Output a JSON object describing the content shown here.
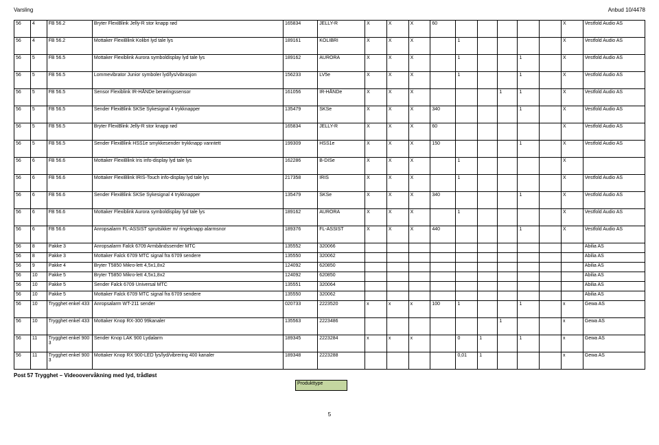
{
  "header": {
    "left": "Varsling",
    "right": "Anbud 10/4478"
  },
  "vendor_vestfold": "Vestfold Audio AS",
  "vendor_abilia": "Abilia AS",
  "vendor_gewa": "Gewa AS",
  "rows": [
    {
      "h": "tall",
      "c1": "56",
      "c2": "4",
      "c3": "FB 56.2",
      "c4": "Bryter FlexiBlink Jelly-R stor knapp rød",
      "c5": "165834",
      "c6": "JELLY-R",
      "c7": "X",
      "c8": "X",
      "c9": "X",
      "c10": "60",
      "c11": "",
      "c12": "",
      "c13": "",
      "c14": "",
      "c15": "",
      "c16": "X",
      "c17": "Vestfold Audio AS"
    },
    {
      "h": "tall",
      "c1": "56",
      "c2": "4",
      "c3": "FB 56.2",
      "c4": "Mottaker FlexiBlink Kolibri lyd tale lys",
      "c5": "189161",
      "c6": "KOLIBRI",
      "c7": "X",
      "c8": "X",
      "c9": "X",
      "c10": "",
      "c11": "1",
      "c12": "",
      "c13": "",
      "c14": "",
      "c15": "",
      "c16": "X",
      "c17": "Vestfold Audio AS"
    },
    {
      "h": "tall",
      "c1": "56",
      "c2": "5",
      "c3": "FB 56.5",
      "c4": "Mottaker Flexiblink Aurora symboldisplay lyd tale lys",
      "c5": "189162",
      "c6": "AURORA",
      "c7": "X",
      "c8": "X",
      "c9": "X",
      "c10": "",
      "c11": "1",
      "c12": "",
      "c13": "",
      "c14": "1",
      "c15": "",
      "c16": "X",
      "c17": "Vestfold Audio AS"
    },
    {
      "h": "tall",
      "c1": "56",
      "c2": "5",
      "c3": "FB 56.5",
      "c4": "Lommevibrator Junior symboler lyd/lys/vibrasjon",
      "c5": "156233",
      "c6": "LV5e",
      "c7": "X",
      "c8": "X",
      "c9": "X",
      "c10": "",
      "c11": "1",
      "c12": "",
      "c13": "",
      "c14": "1",
      "c15": "",
      "c16": "X",
      "c17": "Vestfold Audio AS"
    },
    {
      "h": "tall",
      "c1": "56",
      "c2": "5",
      "c3": "FB 56.5",
      "c4": "Sensor Flexiblink IR-HÅNDe berøringssensor",
      "c5": "161056",
      "c6": "IR-HÅNDe",
      "c7": "X",
      "c8": "X",
      "c9": "X",
      "c10": "",
      "c11": "",
      "c12": "",
      "c13": "1",
      "c14": "1",
      "c15": "",
      "c16": "X",
      "c17": "Vestfold Audio AS"
    },
    {
      "h": "tall",
      "c1": "56",
      "c2": "5",
      "c3": "FB 56.5",
      "c4": "Sender FlexiBlink SKSe Sykesignal 4 trykknapper",
      "c5": "135479",
      "c6": "SKSe",
      "c7": "X",
      "c8": "X",
      "c9": "X",
      "c10": "340",
      "c11": "",
      "c12": "",
      "c13": "",
      "c14": "1",
      "c15": "",
      "c16": "X",
      "c17": "Vestfold Audio AS"
    },
    {
      "h": "tall",
      "c1": "56",
      "c2": "5",
      "c3": "FB 56.5",
      "c4": "Bryter FlexiBlink Jelly-R stor knapp rød",
      "c5": "165834",
      "c6": "JELLY-R",
      "c7": "X",
      "c8": "X",
      "c9": "X",
      "c10": "60",
      "c11": "",
      "c12": "",
      "c13": "",
      "c14": "",
      "c15": "",
      "c16": "X",
      "c17": "Vestfold Audio AS"
    },
    {
      "h": "tall",
      "c1": "56",
      "c2": "5",
      "c3": "FB 56.5",
      "c4": "Sender FlexiBlink HSS1e smykkesender trykknapp vanntett",
      "c5": "199309",
      "c6": "HSS1e",
      "c7": "X",
      "c8": "X",
      "c9": "X",
      "c10": "150",
      "c11": "",
      "c12": "",
      "c13": "",
      "c14": "1",
      "c15": "",
      "c16": "X",
      "c17": "Vestfold Audio AS"
    },
    {
      "h": "tall",
      "c1": "56",
      "c2": "6",
      "c3": "FB 56.6",
      "c4": "Mottaker FlexiBlink Iris info-display lyd tale lys",
      "c5": "162286",
      "c6": "B-DISe",
      "c7": "X",
      "c8": "X",
      "c9": "X",
      "c10": "",
      "c11": "1",
      "c12": "",
      "c13": "",
      "c14": "",
      "c15": "",
      "c16": "X",
      "c17": ""
    },
    {
      "h": "tall",
      "c1": "56",
      "c2": "6",
      "c3": "FB 56.6",
      "c4": "Mottaker FlexiBlink IRIS-Touch info-display lyd tale lys",
      "c5": "217358",
      "c6": "IRIS",
      "c7": "X",
      "c8": "X",
      "c9": "X",
      "c10": "",
      "c11": "1",
      "c12": "",
      "c13": "",
      "c14": "",
      "c15": "",
      "c16": "X",
      "c17": "Vestfold Audio AS"
    },
    {
      "h": "tall",
      "c1": "56",
      "c2": "6",
      "c3": "FB 56.6",
      "c4": "Sender FlexiBlink SKSe Sykesignal 4 trykknapper",
      "c5": "135479",
      "c6": "SKSe",
      "c7": "X",
      "c8": "X",
      "c9": "X",
      "c10": "340",
      "c11": "",
      "c12": "",
      "c13": "",
      "c14": "1",
      "c15": "",
      "c16": "X",
      "c17": "Vestfold Audio AS"
    },
    {
      "h": "tall",
      "c1": "56",
      "c2": "6",
      "c3": "FB 56.6",
      "c4": "Mottaker Flexiblink Aurora symboldisplay lyd tale lys",
      "c5": "189162",
      "c6": "AURORA",
      "c7": "X",
      "c8": "X",
      "c9": "X",
      "c10": "",
      "c11": "1",
      "c12": "",
      "c13": "",
      "c14": "",
      "c15": "",
      "c16": "X",
      "c17": "Vestfold Audio AS"
    },
    {
      "h": "tall",
      "c1": "56",
      "c2": "6",
      "c3": "FB 56.6",
      "c4": "Anropsalarm FL-ASSIST sprutsikker m/ ringeknapp alarmsnor",
      "c5": "189376",
      "c6": "FL-ASSIST",
      "c7": "X",
      "c8": "X",
      "c9": "X",
      "c10": "440",
      "c11": "",
      "c12": "",
      "c13": "",
      "c14": "1",
      "c15": "",
      "c16": "X",
      "c17": "Vestfold Audio AS"
    },
    {
      "h": "short",
      "c1": "56",
      "c2": "8",
      "c3": "Pakke 3",
      "c4": "Anropsalarm Falck 6709 Armbåndssender MTC",
      "c5": "135552",
      "c6": "320066",
      "c7": "",
      "c8": "",
      "c9": "",
      "c10": "",
      "c11": "",
      "c12": "",
      "c13": "",
      "c14": "",
      "c15": "",
      "c16": "",
      "c17": "Abilia AS"
    },
    {
      "h": "short",
      "c1": "56",
      "c2": "8",
      "c3": "Pakke 3",
      "c4": "Mottaker Falck 6709 MTC signal fra 6709 sendere",
      "c5": "135550",
      "c6": "320062",
      "c7": "",
      "c8": "",
      "c9": "",
      "c10": "",
      "c11": "",
      "c12": "",
      "c13": "",
      "c14": "",
      "c15": "",
      "c16": "",
      "c17": "Abilia AS"
    },
    {
      "h": "short",
      "c1": "56",
      "c2": "9",
      "c3": "Pakke 4",
      "c4": "Bryter T5850 Mikro-lett 4,5x1,8x2",
      "c5": "124092",
      "c6": "620850",
      "c7": "",
      "c8": "",
      "c9": "",
      "c10": "",
      "c11": "",
      "c12": "",
      "c13": "",
      "c14": "",
      "c15": "",
      "c16": "",
      "c17": "Abilia AS"
    },
    {
      "h": "short",
      "c1": "56",
      "c2": "10",
      "c3": "Pakke 5",
      "c4": "Bryter T5850 Mikro-lett 4,5x1,8x2",
      "c5": "124092",
      "c6": "620850",
      "c7": "",
      "c8": "",
      "c9": "",
      "c10": "",
      "c11": "",
      "c12": "",
      "c13": "",
      "c14": "",
      "c15": "",
      "c16": "",
      "c17": "Abilia AS"
    },
    {
      "h": "short",
      "c1": "56",
      "c2": "10",
      "c3": "Pakke 5",
      "c4": "Sender Falck 6709 Universal MTC",
      "c5": "135551",
      "c6": "320064",
      "c7": "",
      "c8": "",
      "c9": "",
      "c10": "",
      "c11": "",
      "c12": "",
      "c13": "",
      "c14": "",
      "c15": "",
      "c16": "",
      "c17": "Abilia AS"
    },
    {
      "h": "short",
      "c1": "56",
      "c2": "10",
      "c3": "Pakke 5",
      "c4": "Mottaker Falck 6709 MTC signal fra 6709 sendere",
      "c5": "135550",
      "c6": "320062",
      "c7": "",
      "c8": "",
      "c9": "",
      "c10": "",
      "c11": "",
      "c12": "",
      "c13": "",
      "c14": "",
      "c15": "",
      "c16": "",
      "c17": "Abilia AS"
    },
    {
      "h": "tall",
      "c1": "56",
      "c2": "10",
      "c3": "Trygghet enkel 433",
      "c4": "Anropsalarm WT-211 sender",
      "c5": "020733",
      "c6": "2223520",
      "c7": "x",
      "c8": "x",
      "c9": "x",
      "c10": "100",
      "c11": "1",
      "c12": "",
      "c13": "",
      "c14": "1",
      "c15": "",
      "c16": "x",
      "c17": "Gewa AS"
    },
    {
      "h": "tall",
      "c1": "56",
      "c2": "10",
      "c3": "Trygghet enkel 433",
      "c4": "Mottaker Knop RX-300 99kanaler",
      "c5": "135563",
      "c6": "2223486",
      "c7": "",
      "c8": "",
      "c9": "",
      "c10": "",
      "c11": "",
      "c12": "",
      "c13": "1",
      "c14": "",
      "c15": "",
      "c16": "x",
      "c17": "Gewa AS"
    },
    {
      "h": "tall",
      "c1": "56",
      "c2": "11",
      "c3": "Trygghet enkel 900 3",
      "c4": "Sender Knop LAK 900 Lydalarm",
      "c5": "189345",
      "c6": "2223284",
      "c7": "x",
      "c8": "x",
      "c9": "x",
      "c10": "",
      "c11": "0",
      "c12": "1",
      "c13": "",
      "c14": "1",
      "c15": "",
      "c16": "x",
      "c17": "Gewa AS"
    },
    {
      "h": "tall",
      "c1": "56",
      "c2": "11",
      "c3": "Trygghet enkel 900 3",
      "c4": "Mottaker Knop RX 900-LED lys/lyd/vibrering 400 kanaler",
      "c5": "189348",
      "c6": "2223288",
      "c7": "",
      "c8": "",
      "c9": "",
      "c10": "",
      "c11": "0,01",
      "c12": "1",
      "c13": "",
      "c14": "",
      "c15": "",
      "c16": "x",
      "c17": "Gewa AS"
    }
  ],
  "section_title": "Post 57 Trygghet – Videoovervåkning med lyd, trådløst",
  "ptype_label": "Produkttype",
  "page_number": "5"
}
